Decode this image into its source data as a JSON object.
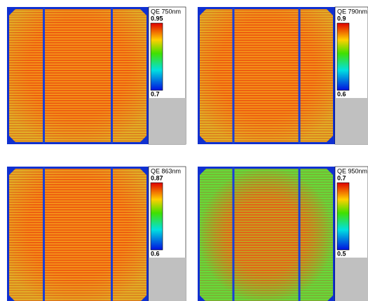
{
  "panels": [
    {
      "label": "QE 750nm",
      "max": 0.95,
      "min": 0.7
    },
    {
      "label": "QE 790nm",
      "max": 0.9,
      "min": 0.6
    },
    {
      "label": "QE 863nm",
      "max": 0.87,
      "min": 0.6
    },
    {
      "label": "QE 950nm",
      "max": 0.7,
      "min": 0.5
    }
  ]
}
